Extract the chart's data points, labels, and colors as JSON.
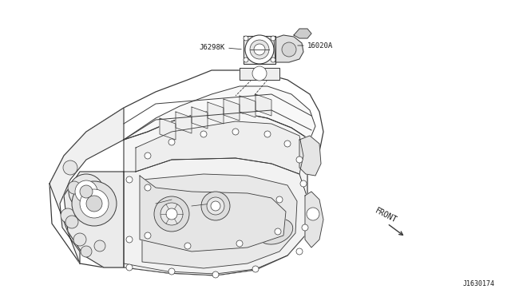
{
  "bg_color": "#ffffff",
  "label_throttle": "16020A",
  "label_gasket": "J6298K",
  "label_front": "FRONT",
  "label_ref": "J1630174",
  "line_color": "#3a3a3a",
  "text_color": "#1a1a1a",
  "font_size_label": 6.5,
  "font_size_ref": 6.0,
  "fig_w": 6.4,
  "fig_h": 3.72,
  "dpi": 100
}
